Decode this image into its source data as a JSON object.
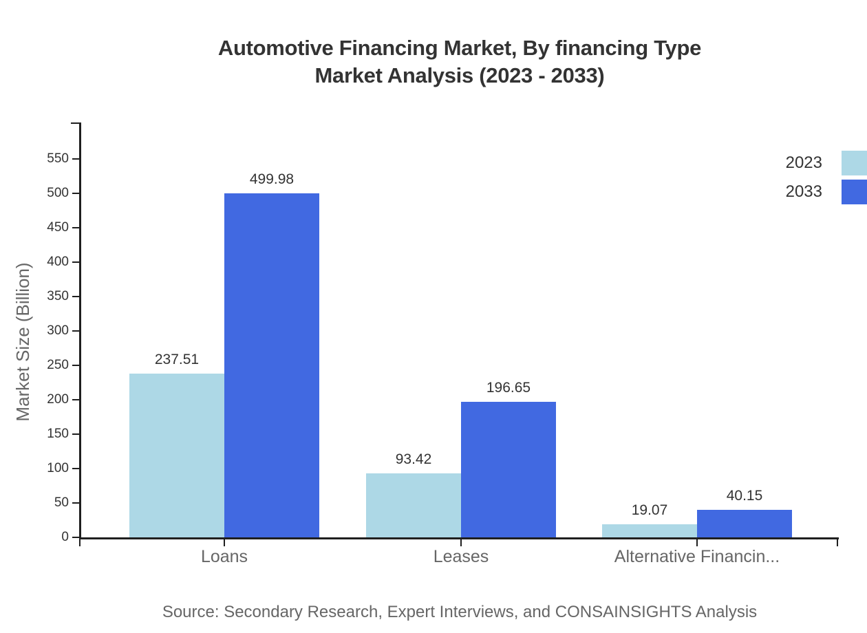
{
  "chart_data": {
    "type": "bar",
    "title_line1": "Automotive Financing Market, By financing Type",
    "title_line2": "Market Analysis (2023 - 2033)",
    "ylabel": "Market Size (Billion)",
    "xlabel": "",
    "categories": [
      "Loans",
      "Leases",
      "Alternative Financin..."
    ],
    "series": [
      {
        "name": "2023",
        "color": "#ADD8E6",
        "values": [
          237.51,
          93.42,
          19.07
        ]
      },
      {
        "name": "2033",
        "color": "#4169E1",
        "values": [
          499.98,
          196.65,
          40.15
        ]
      }
    ],
    "yticks": [
      0,
      50,
      100,
      150,
      200,
      250,
      300,
      350,
      400,
      450,
      500,
      550
    ],
    "ylim": [
      0,
      600
    ],
    "grid": false,
    "legend_position": "top-right",
    "value_labels_shown": true
  },
  "source_note": "Source: Secondary Research, Expert Interviews, and CONSAINSIGHTS Analysis",
  "theme": {
    "background": "#ffffff",
    "axis_color": "#1f1f1f",
    "title_color": "#333333",
    "tick_label_color": "#333333",
    "value_label_color": "#333333",
    "category_label_color": "#666666",
    "axis_title_color": "#666666",
    "source_color": "#666666",
    "series_2023_color": "#ADD8E6",
    "series_2033_color": "#4169E1"
  }
}
